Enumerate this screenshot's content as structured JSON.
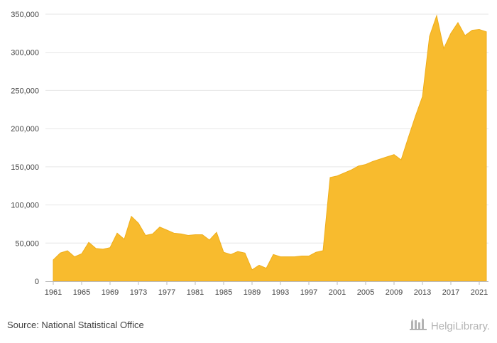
{
  "footer": {
    "source": "Source: National Statistical Office",
    "brand": "HelgiLibrary."
  },
  "colors": {
    "area_fill": "#f8bb2e",
    "area_stroke": "#efae1a",
    "grid": "#e6e6e6"
  },
  "icons": {
    "brand_logo": "library-buildings-icon"
  },
  "chart_data": {
    "type": "area",
    "title": "",
    "xlabel": "",
    "ylabel": "",
    "ylim": [
      0,
      350000
    ],
    "xlim": [
      1961,
      2022
    ],
    "grid": "horizontal",
    "legend": "none",
    "y_ticks": [
      "0",
      "50,000",
      "100,000",
      "150,000",
      "200,000",
      "250,000",
      "300,000",
      "350,000"
    ],
    "y_tick_values": [
      0,
      50000,
      100000,
      150000,
      200000,
      250000,
      300000,
      350000
    ],
    "x_ticks": [
      "1961",
      "1965",
      "1969",
      "1973",
      "1977",
      "1981",
      "1985",
      "1989",
      "1993",
      "1997",
      "2001",
      "2005",
      "2009",
      "2013",
      "2017",
      "2021"
    ],
    "x_tick_values": [
      1961,
      1965,
      1969,
      1973,
      1977,
      1981,
      1985,
      1989,
      1993,
      1997,
      2001,
      2005,
      2009,
      2013,
      2017,
      2021
    ],
    "x": [
      1961,
      1962,
      1963,
      1964,
      1965,
      1966,
      1967,
      1968,
      1969,
      1970,
      1971,
      1972,
      1973,
      1974,
      1975,
      1976,
      1977,
      1978,
      1979,
      1980,
      1981,
      1982,
      1983,
      1984,
      1985,
      1986,
      1987,
      1988,
      1989,
      1990,
      1991,
      1992,
      1993,
      1994,
      1995,
      1996,
      1997,
      1998,
      1999,
      2000,
      2001,
      2002,
      2003,
      2004,
      2005,
      2006,
      2007,
      2008,
      2009,
      2010,
      2011,
      2012,
      2013,
      2014,
      2015,
      2016,
      2017,
      2018,
      2019,
      2020,
      2021,
      2022
    ],
    "series": [
      {
        "values": [
          28000,
          37000,
          40000,
          32000,
          36000,
          51000,
          43000,
          42000,
          44000,
          63000,
          55000,
          85000,
          76000,
          60000,
          62000,
          71000,
          67000,
          63000,
          62000,
          60000,
          61000,
          61000,
          54000,
          64000,
          38000,
          35000,
          39000,
          37000,
          15000,
          21000,
          17000,
          35000,
          32000,
          32000,
          32000,
          33000,
          33000,
          38000,
          40000,
          136000,
          138000,
          142000,
          146000,
          151000,
          153000,
          157000,
          160000,
          163000,
          166000,
          159000,
          188000,
          216000,
          242000,
          321000,
          348000,
          305000,
          325000,
          339000,
          322000,
          329000,
          330000,
          327000
        ]
      }
    ]
  }
}
